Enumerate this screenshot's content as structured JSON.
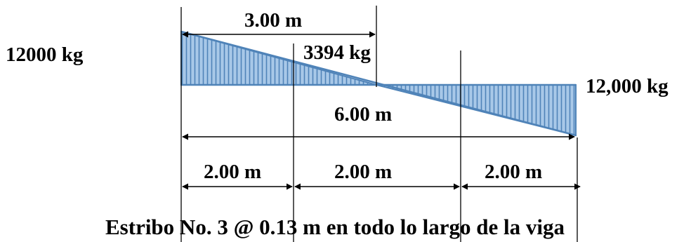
{
  "shear_diagram": {
    "left_value": "12000 kg",
    "right_value": "12,000 kg",
    "intermediate_value": "3394 kg",
    "dimension_half": "3.00 m",
    "dimension_total": "6.00 m",
    "segments": [
      "2.00 m",
      "2.00 m",
      "2.00 m"
    ],
    "caption": "Estribo No. 3 @ 0.13 m en todo lo largo de la viga",
    "values_kg": {
      "left": 12000,
      "at_2m": 3394,
      "right": -12000
    },
    "zero_crossing_m": 3.0,
    "span_m": 6.0
  },
  "colors": {
    "fill": "#a8c8e8",
    "hatch": "#4f83b8",
    "outline": "#4f83b8",
    "lines": "#000000"
  }
}
